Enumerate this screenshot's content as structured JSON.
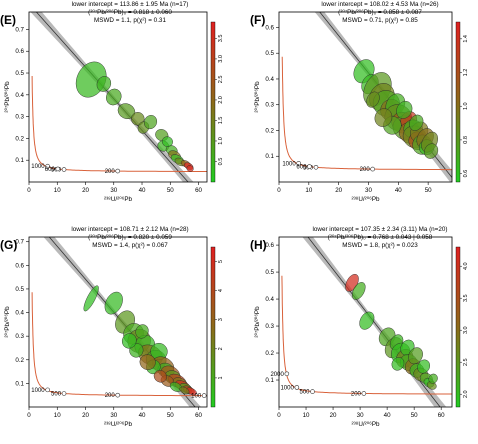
{
  "figure": {
    "panels_note": "",
    "colors": {
      "concordia": "#d9623b",
      "regression_band": "#808080",
      "ellipse_low": "#22cc22",
      "ellipse_mid": "#8c6a1a",
      "ellipse_high": "#e02020",
      "ellipse_stroke": "#2a2a2a"
    }
  },
  "chart_data": [
    {
      "id": "E",
      "panel_label": "(E)",
      "type": "scatter",
      "title": "lower intercept = 113.86 ± 1.95 Ma (n=17)",
      "subtitle": "(²⁰⁷Pb/²⁰⁶Pb)₀ = 0.818 ± 0.060",
      "subtitle2": "MSWD = 1.1, p(χ²) = 0.31",
      "xlabel": "²³⁸U/²⁰⁶Pb",
      "ylabel": "²⁰⁷Pb/²⁰⁶Pb",
      "xlim": [
        0,
        63
      ],
      "ylim": [
        0,
        0.78
      ],
      "xticks": [
        0,
        10,
        20,
        30,
        40,
        50,
        60
      ],
      "yticks": [
        0.1,
        0.2,
        0.3,
        0.4,
        0.5,
        0.6,
        0.7
      ],
      "concordia_ages": [
        {
          "label": "1000",
          "x": 6.6,
          "y": 0.0725
        },
        {
          "label": "500",
          "x": 12.4,
          "y": 0.0572
        },
        {
          "label": "200",
          "x": 31.4,
          "y": 0.0502
        },
        {
          "label": "600",
          "x": 10.2,
          "y": 0.0601
        }
      ],
      "regression": {
        "y0": 0.818,
        "x_int": 56.3
      },
      "colorbar": {
        "min": 0.0,
        "max": 3.9,
        "ticks": [
          0.5,
          1.0,
          1.5,
          2.0,
          2.5,
          3.0,
          3.5
        ]
      },
      "ellipses": [
        {
          "x": 22.0,
          "y": 0.47,
          "rx": 5.0,
          "ry": 0.085,
          "c": 0.4
        },
        {
          "x": 26.5,
          "y": 0.45,
          "rx": 2.4,
          "ry": 0.036,
          "c": 0.5
        },
        {
          "x": 30.0,
          "y": 0.39,
          "rx": 2.6,
          "ry": 0.038,
          "c": 0.7
        },
        {
          "x": 34.5,
          "y": 0.325,
          "rx": 3.1,
          "ry": 0.034,
          "c": 1.0
        },
        {
          "x": 38.5,
          "y": 0.29,
          "rx": 2.3,
          "ry": 0.03,
          "c": 1.3
        },
        {
          "x": 40.5,
          "y": 0.25,
          "rx": 1.9,
          "ry": 0.028,
          "c": 1.2
        },
        {
          "x": 43.0,
          "y": 0.275,
          "rx": 2.2,
          "ry": 0.032,
          "c": 0.8
        },
        {
          "x": 47.0,
          "y": 0.215,
          "rx": 2.3,
          "ry": 0.026,
          "c": 0.9
        },
        {
          "x": 47.5,
          "y": 0.165,
          "rx": 2.0,
          "ry": 0.024,
          "c": 0.5
        },
        {
          "x": 50.5,
          "y": 0.145,
          "rx": 2.1,
          "ry": 0.022,
          "c": 0.6
        },
        {
          "x": 51.5,
          "y": 0.122,
          "rx": 2.3,
          "ry": 0.02,
          "c": 1.8
        },
        {
          "x": 52.5,
          "y": 0.105,
          "rx": 2.4,
          "ry": 0.018,
          "c": 0.4
        },
        {
          "x": 53.5,
          "y": 0.092,
          "rx": 2.0,
          "ry": 0.016,
          "c": 1.4
        },
        {
          "x": 55.5,
          "y": 0.083,
          "rx": 1.8,
          "ry": 0.014,
          "c": 2.2
        },
        {
          "x": 56.5,
          "y": 0.073,
          "rx": 1.7,
          "ry": 0.012,
          "c": 3.7
        },
        {
          "x": 57.0,
          "y": 0.062,
          "rx": 1.2,
          "ry": 0.011,
          "c": 3.6
        },
        {
          "x": 49.0,
          "y": 0.185,
          "rx": 1.9,
          "ry": 0.023,
          "c": 0.3
        }
      ]
    },
    {
      "id": "F",
      "panel_label": "(F)",
      "type": "scatter",
      "title": "lower intercept = 108.02 ± 4.53 Ma (n=26)",
      "subtitle": "(²⁰⁷Pb/²⁰⁶Pb)₀ = 0.858 ± 0.087",
      "subtitle2": "MSWD = 0.71, p(χ²) = 0.85",
      "xlabel": "²³⁸U/²⁰⁶Pb",
      "ylabel": "²⁰⁷Pb/²⁰⁶Pb",
      "xlim": [
        0,
        58
      ],
      "ylim": [
        0,
        0.66
      ],
      "xticks": [
        0,
        10,
        20,
        30,
        40,
        50
      ],
      "yticks": [
        0.1,
        0.2,
        0.3,
        0.4,
        0.5,
        0.6
      ],
      "concordia_ages": [
        {
          "label": "1000",
          "x": 6.6,
          "y": 0.0725
        },
        {
          "label": "500",
          "x": 12.4,
          "y": 0.0572
        },
        {
          "label": "200",
          "x": 31.4,
          "y": 0.0502
        },
        {
          "label": "600",
          "x": 10.2,
          "y": 0.0601
        }
      ],
      "regression": {
        "y0": 0.858,
        "x_int": 59.2
      },
      "colorbar": {
        "min": 0.55,
        "max": 1.5,
        "ticks": [
          0.6,
          0.8,
          1.0,
          1.2,
          1.4
        ]
      },
      "ellipses": [
        {
          "x": 28.5,
          "y": 0.43,
          "rx": 3.2,
          "ry": 0.048,
          "c": 0.62
        },
        {
          "x": 30.5,
          "y": 0.38,
          "rx": 2.6,
          "ry": 0.04,
          "c": 0.65
        },
        {
          "x": 33.0,
          "y": 0.36,
          "rx": 4.2,
          "ry": 0.07,
          "c": 0.8
        },
        {
          "x": 34.5,
          "y": 0.33,
          "rx": 4.0,
          "ry": 0.055,
          "c": 0.9
        },
        {
          "x": 36.0,
          "y": 0.305,
          "rx": 4.5,
          "ry": 0.05,
          "c": 0.75
        },
        {
          "x": 37.5,
          "y": 0.28,
          "rx": 3.4,
          "ry": 0.042,
          "c": 1.0
        },
        {
          "x": 39.0,
          "y": 0.3,
          "rx": 3.0,
          "ry": 0.045,
          "c": 0.7
        },
        {
          "x": 40.0,
          "y": 0.25,
          "rx": 4.6,
          "ry": 0.05,
          "c": 0.85
        },
        {
          "x": 41.5,
          "y": 0.23,
          "rx": 3.8,
          "ry": 0.04,
          "c": 1.1
        },
        {
          "x": 42.5,
          "y": 0.21,
          "rx": 4.4,
          "ry": 0.046,
          "c": 0.8
        },
        {
          "x": 43.5,
          "y": 0.24,
          "rx": 2.6,
          "ry": 0.035,
          "c": 1.35
        },
        {
          "x": 44.0,
          "y": 0.19,
          "rx": 3.8,
          "ry": 0.04,
          "c": 1.05
        },
        {
          "x": 45.0,
          "y": 0.205,
          "rx": 3.2,
          "ry": 0.036,
          "c": 0.7
        },
        {
          "x": 45.5,
          "y": 0.175,
          "rx": 4.0,
          "ry": 0.042,
          "c": 0.9
        },
        {
          "x": 46.5,
          "y": 0.16,
          "rx": 3.0,
          "ry": 0.035,
          "c": 1.2
        },
        {
          "x": 47.0,
          "y": 0.195,
          "rx": 2.8,
          "ry": 0.04,
          "c": 0.95
        },
        {
          "x": 48.0,
          "y": 0.145,
          "rx": 3.2,
          "ry": 0.038,
          "c": 0.75
        },
        {
          "x": 49.0,
          "y": 0.17,
          "rx": 2.6,
          "ry": 0.04,
          "c": 1.0
        },
        {
          "x": 49.5,
          "y": 0.135,
          "rx": 2.5,
          "ry": 0.03,
          "c": 0.65
        },
        {
          "x": 50.5,
          "y": 0.155,
          "rx": 2.4,
          "ry": 0.042,
          "c": 0.9
        },
        {
          "x": 51.0,
          "y": 0.12,
          "rx": 2.2,
          "ry": 0.03,
          "c": 0.8
        },
        {
          "x": 38.0,
          "y": 0.22,
          "rx": 3.0,
          "ry": 0.035,
          "c": 0.75
        },
        {
          "x": 35.0,
          "y": 0.25,
          "rx": 2.8,
          "ry": 0.036,
          "c": 0.9
        },
        {
          "x": 42.0,
          "y": 0.28,
          "rx": 2.5,
          "ry": 0.035,
          "c": 0.68
        },
        {
          "x": 31.5,
          "y": 0.32,
          "rx": 2.0,
          "ry": 0.032,
          "c": 0.85
        },
        {
          "x": 46.0,
          "y": 0.23,
          "rx": 2.2,
          "ry": 0.032,
          "c": 0.72
        }
      ]
    },
    {
      "id": "G",
      "panel_label": "(G)",
      "type": "scatter",
      "title": "lower intercept = 108.71 ± 2.12 Ma (n=28)",
      "subtitle": "(²⁰⁷Pb/²⁰⁶Pb)₀ = 0.820 ± 0.059",
      "subtitle2": "MSWD = 1.4, p(χ²) = 0.067",
      "xlabel": "²³⁸U/²⁰⁶Pb",
      "ylabel": "²⁰⁷Pb/²⁰⁶Pb",
      "xlim": [
        0,
        63
      ],
      "ylim": [
        0,
        0.72
      ],
      "xticks": [
        0,
        10,
        20,
        30,
        40,
        50,
        60
      ],
      "yticks": [
        0.1,
        0.2,
        0.3,
        0.4,
        0.5,
        0.6,
        0.7
      ],
      "concordia_ages": [
        {
          "label": "1000",
          "x": 6.6,
          "y": 0.0725
        },
        {
          "label": "500",
          "x": 12.4,
          "y": 0.0572
        },
        {
          "label": "200",
          "x": 31.4,
          "y": 0.0502
        },
        {
          "label": "100",
          "x": 62.0,
          "y": 0.0484
        }
      ],
      "regression": {
        "y0": 0.82,
        "x_int": 58.8
      },
      "colorbar": {
        "min": 0.0,
        "max": 5.5,
        "ticks": [
          1,
          2,
          3,
          4,
          5
        ]
      },
      "ellipses": [
        {
          "x": 22.0,
          "y": 0.46,
          "rx": 1.4,
          "ry": 0.06,
          "c": 0.4
        },
        {
          "x": 30.0,
          "y": 0.44,
          "rx": 2.8,
          "ry": 0.05,
          "c": 0.5
        },
        {
          "x": 34.0,
          "y": 0.36,
          "rx": 3.2,
          "ry": 0.05,
          "c": 1.5
        },
        {
          "x": 37.0,
          "y": 0.31,
          "rx": 3.5,
          "ry": 0.045,
          "c": 1.0
        },
        {
          "x": 39.0,
          "y": 0.28,
          "rx": 4.0,
          "ry": 0.05,
          "c": 2.0
        },
        {
          "x": 41.0,
          "y": 0.26,
          "rx": 3.5,
          "ry": 0.045,
          "c": 0.6
        },
        {
          "x": 43.0,
          "y": 0.22,
          "rx": 4.5,
          "ry": 0.04,
          "c": 2.6
        },
        {
          "x": 45.0,
          "y": 0.2,
          "rx": 3.6,
          "ry": 0.04,
          "c": 1.2
        },
        {
          "x": 46.0,
          "y": 0.235,
          "rx": 3.0,
          "ry": 0.035,
          "c": 0.5
        },
        {
          "x": 47.5,
          "y": 0.175,
          "rx": 4.0,
          "ry": 0.035,
          "c": 3.0
        },
        {
          "x": 48.5,
          "y": 0.155,
          "rx": 3.0,
          "ry": 0.03,
          "c": 0.8
        },
        {
          "x": 50.0,
          "y": 0.14,
          "rx": 3.5,
          "ry": 0.032,
          "c": 3.5
        },
        {
          "x": 51.0,
          "y": 0.125,
          "rx": 3.0,
          "ry": 0.028,
          "c": 1.5
        },
        {
          "x": 52.5,
          "y": 0.11,
          "rx": 3.4,
          "ry": 0.026,
          "c": 4.2
        },
        {
          "x": 53.5,
          "y": 0.1,
          "rx": 2.8,
          "ry": 0.022,
          "c": 2.5
        },
        {
          "x": 54.5,
          "y": 0.088,
          "rx": 3.0,
          "ry": 0.02,
          "c": 4.8
        },
        {
          "x": 55.5,
          "y": 0.08,
          "rx": 2.4,
          "ry": 0.018,
          "c": 1.2
        },
        {
          "x": 56.5,
          "y": 0.072,
          "rx": 2.2,
          "ry": 0.015,
          "c": 4.0
        },
        {
          "x": 57.5,
          "y": 0.066,
          "rx": 2.0,
          "ry": 0.013,
          "c": 5.2
        },
        {
          "x": 44.0,
          "y": 0.17,
          "rx": 2.5,
          "ry": 0.03,
          "c": 0.5
        },
        {
          "x": 42.0,
          "y": 0.19,
          "rx": 2.8,
          "ry": 0.032,
          "c": 2.9
        },
        {
          "x": 38.0,
          "y": 0.24,
          "rx": 2.4,
          "ry": 0.03,
          "c": 0.7
        },
        {
          "x": 40.0,
          "y": 0.32,
          "rx": 2.2,
          "ry": 0.03,
          "c": 0.9
        },
        {
          "x": 49.0,
          "y": 0.11,
          "rx": 2.4,
          "ry": 0.022,
          "c": 3.3
        },
        {
          "x": 52.0,
          "y": 0.085,
          "rx": 2.2,
          "ry": 0.018,
          "c": 0.6
        },
        {
          "x": 35.5,
          "y": 0.28,
          "rx": 2.5,
          "ry": 0.032,
          "c": 0.4
        },
        {
          "x": 46.5,
          "y": 0.13,
          "rx": 2.3,
          "ry": 0.025,
          "c": 3.8
        },
        {
          "x": 55.0,
          "y": 0.07,
          "rx": 1.8,
          "ry": 0.013,
          "c": 2.2
        }
      ]
    },
    {
      "id": "H",
      "panel_label": "(H)",
      "type": "scatter",
      "title": "lower intercept = 107.35 ± 2.34 (3.11) Ma (n=20)",
      "subtitle": "(²⁰⁷Pb/²⁰⁶Pb)₀ = 0.768 ± 0.043 | 0.058",
      "subtitle2": "MSWD = 1.8, p(χ²) = 0.023",
      "xlabel": "²³⁸U/²⁰⁶Pb",
      "ylabel": "²⁰⁷Pb/²⁰⁶Pb",
      "xlim": [
        0,
        64
      ],
      "ylim": [
        0,
        0.63
      ],
      "xticks": [
        0,
        10,
        20,
        30,
        40,
        50,
        60
      ],
      "yticks": [
        0.1,
        0.2,
        0.3,
        0.4,
        0.5,
        0.6
      ],
      "concordia_ages": [
        {
          "label": "1000",
          "x": 6.6,
          "y": 0.0725
        },
        {
          "label": "500",
          "x": 12.4,
          "y": 0.0572
        },
        {
          "label": "200",
          "x": 31.4,
          "y": 0.0502
        },
        {
          "label": "2000",
          "x": 2.9,
          "y": 0.123
        }
      ],
      "regression": {
        "y0": 0.768,
        "x_int": 59.6
      },
      "colorbar": {
        "min": 1.8,
        "max": 4.3,
        "ticks": [
          2.0,
          2.5,
          3.0,
          3.5,
          4.0
        ]
      },
      "ellipses": [
        {
          "x": 27.0,
          "y": 0.46,
          "rx": 2.0,
          "ry": 0.035,
          "c": 4.1
        },
        {
          "x": 29.5,
          "y": 0.43,
          "rx": 2.0,
          "ry": 0.035,
          "c": 2.2
        },
        {
          "x": 32.5,
          "y": 0.32,
          "rx": 2.4,
          "ry": 0.035,
          "c": 2.0
        },
        {
          "x": 40.0,
          "y": 0.26,
          "rx": 2.8,
          "ry": 0.035,
          "c": 2.3
        },
        {
          "x": 42.5,
          "y": 0.22,
          "rx": 3.0,
          "ry": 0.04,
          "c": 2.5
        },
        {
          "x": 43.5,
          "y": 0.24,
          "rx": 2.2,
          "ry": 0.03,
          "c": 2.1
        },
        {
          "x": 45.0,
          "y": 0.2,
          "rx": 3.4,
          "ry": 0.038,
          "c": 2.0
        },
        {
          "x": 46.5,
          "y": 0.18,
          "rx": 3.0,
          "ry": 0.035,
          "c": 2.8
        },
        {
          "x": 47.5,
          "y": 0.22,
          "rx": 2.4,
          "ry": 0.03,
          "c": 2.0
        },
        {
          "x": 48.0,
          "y": 0.165,
          "rx": 3.2,
          "ry": 0.03,
          "c": 2.2
        },
        {
          "x": 49.5,
          "y": 0.15,
          "rx": 2.8,
          "ry": 0.03,
          "c": 3.0
        },
        {
          "x": 50.5,
          "y": 0.19,
          "rx": 2.5,
          "ry": 0.032,
          "c": 2.4
        },
        {
          "x": 51.0,
          "y": 0.135,
          "rx": 2.6,
          "ry": 0.026,
          "c": 2.1
        },
        {
          "x": 52.5,
          "y": 0.12,
          "rx": 2.8,
          "ry": 0.024,
          "c": 2.7
        },
        {
          "x": 53.5,
          "y": 0.15,
          "rx": 2.2,
          "ry": 0.026,
          "c": 2.0
        },
        {
          "x": 54.5,
          "y": 0.105,
          "rx": 2.4,
          "ry": 0.02,
          "c": 2.3
        },
        {
          "x": 55.5,
          "y": 0.09,
          "rx": 2.0,
          "ry": 0.016,
          "c": 2.0
        },
        {
          "x": 56.5,
          "y": 0.08,
          "rx": 1.8,
          "ry": 0.014,
          "c": 2.6
        },
        {
          "x": 44.0,
          "y": 0.16,
          "rx": 2.2,
          "ry": 0.025,
          "c": 2.0
        },
        {
          "x": 57.0,
          "y": 0.105,
          "rx": 1.6,
          "ry": 0.018,
          "c": 2.2
        }
      ]
    }
  ]
}
